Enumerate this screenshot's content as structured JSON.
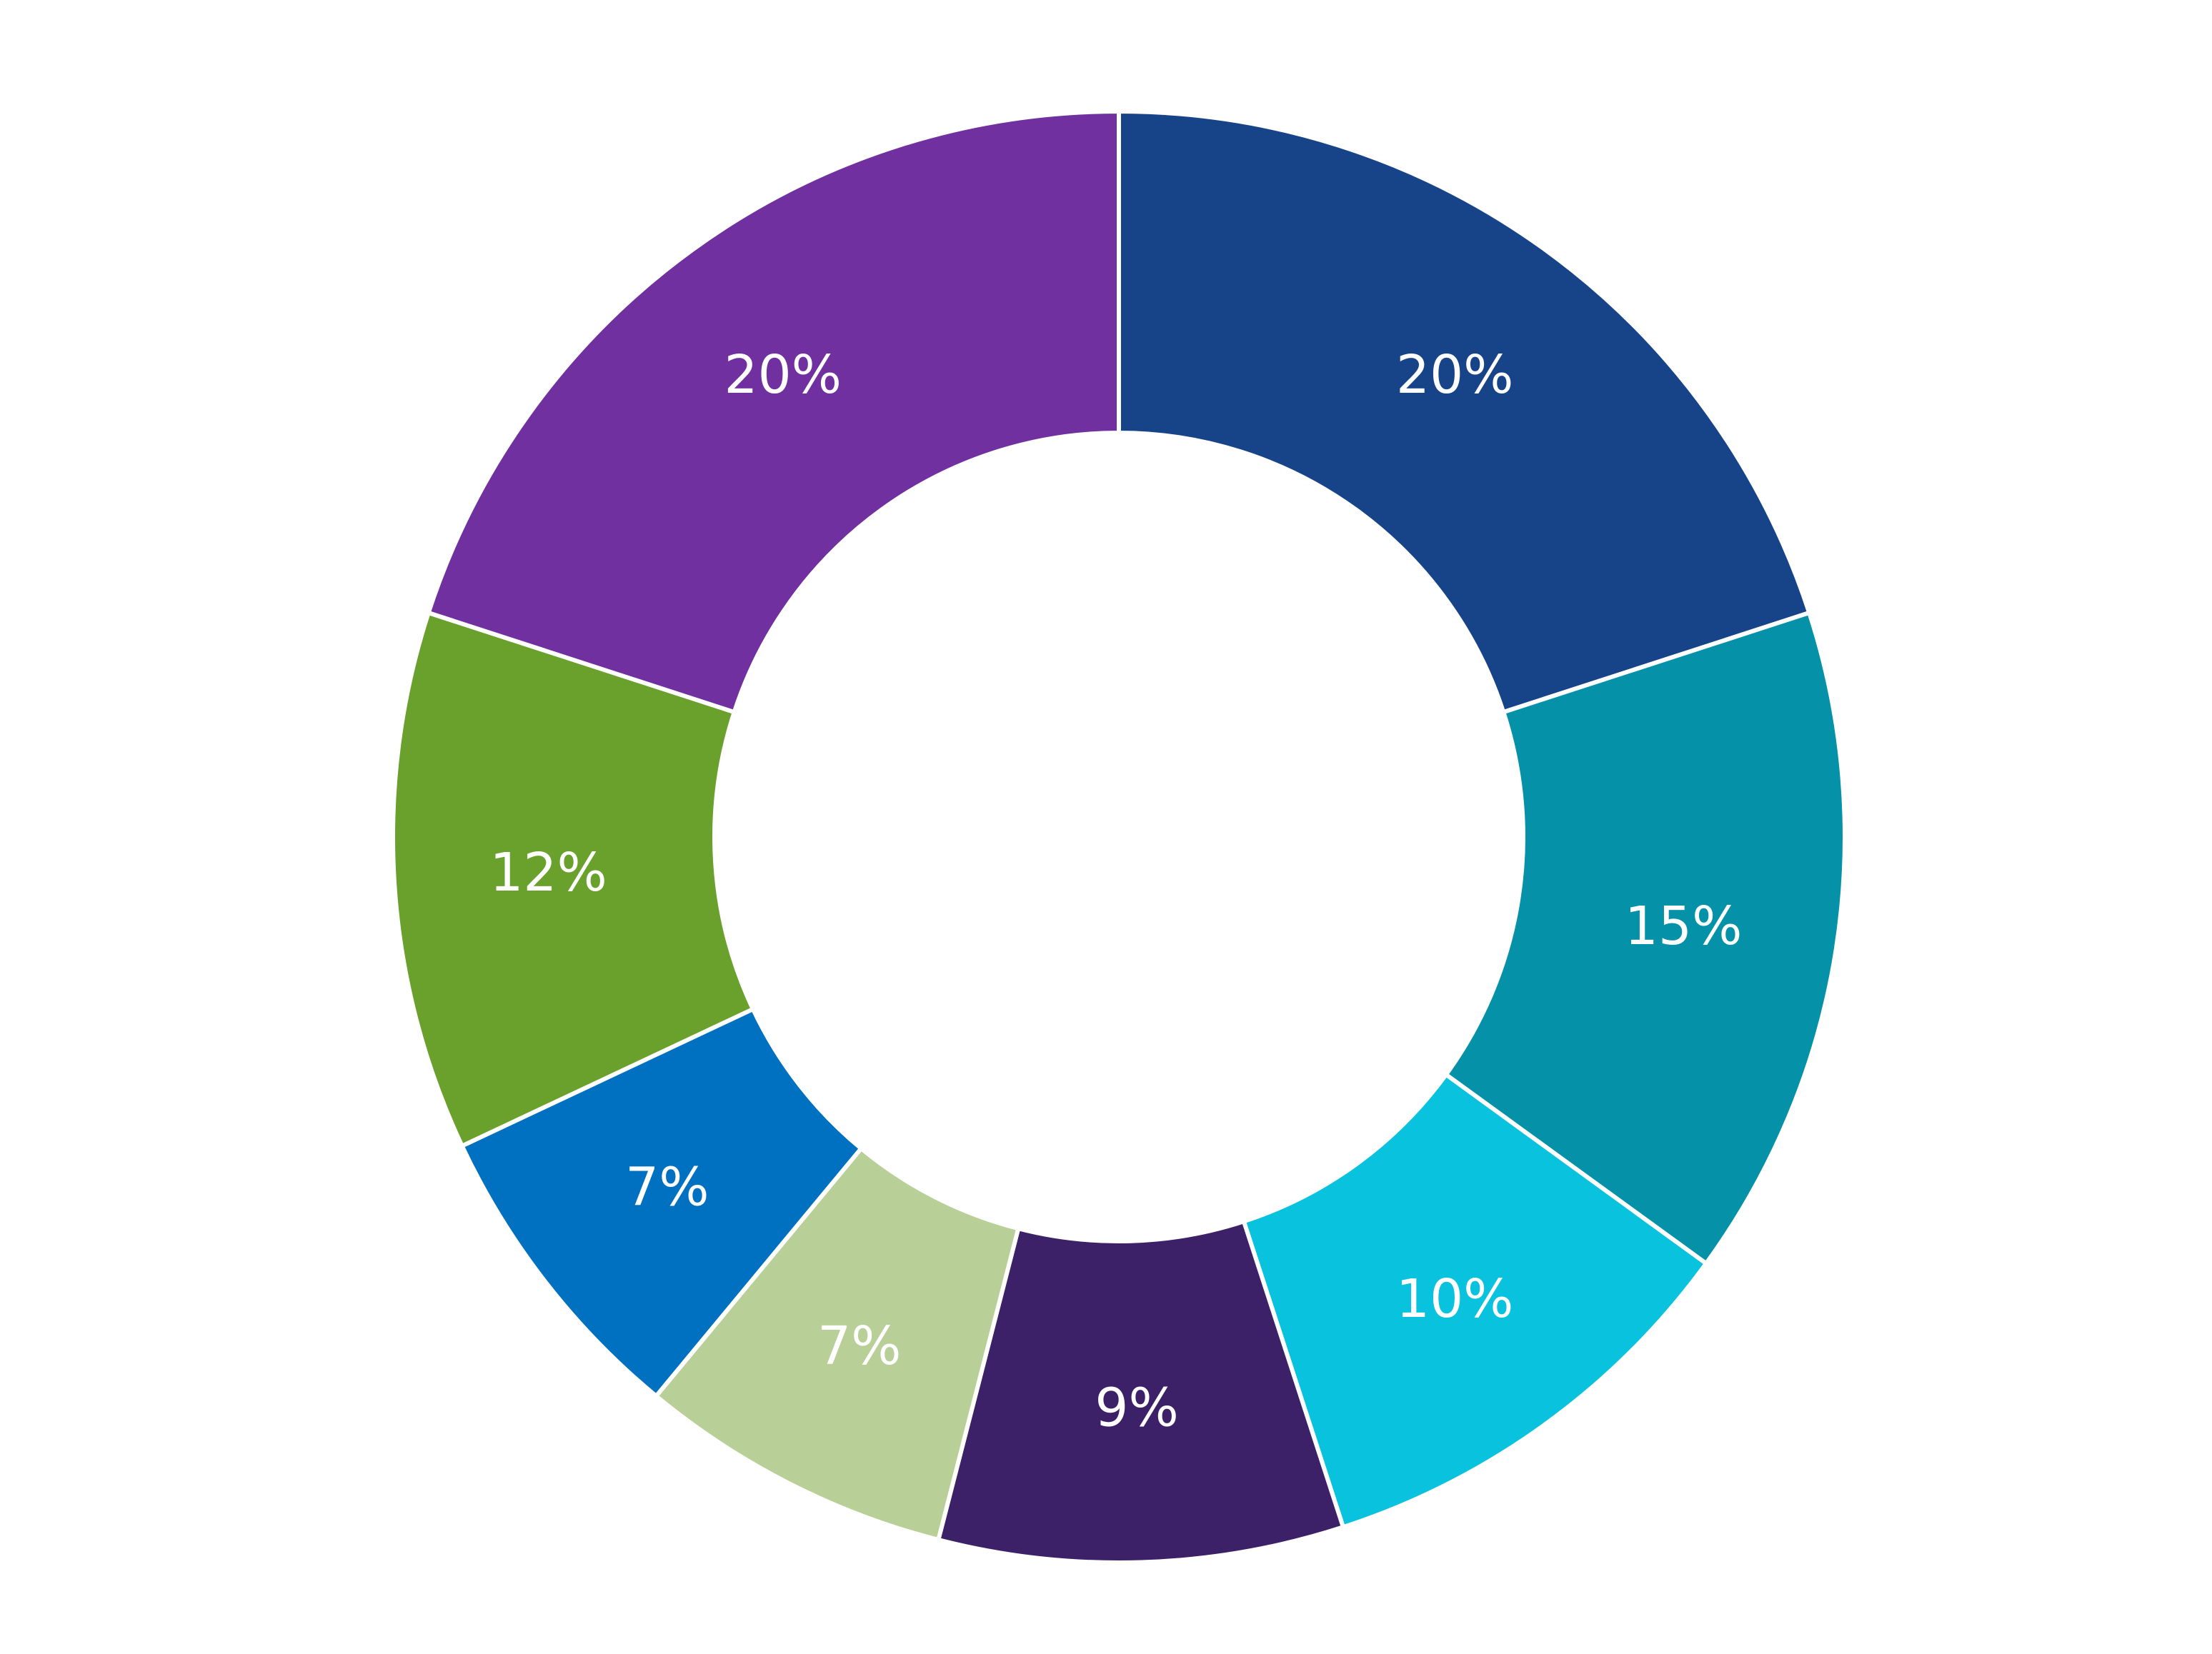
{
  "chart_data": {
    "type": "pie",
    "donut": true,
    "start_angle_deg": 0,
    "direction": "clockwise",
    "slices": [
      {
        "value": 20,
        "label": "20%",
        "color": "#174489"
      },
      {
        "value": 15,
        "label": "15%",
        "color": "#0592a8"
      },
      {
        "value": 10,
        "label": "10%",
        "color": "#08c2de"
      },
      {
        "value": 9,
        "label": "9%",
        "color": "#3c2168"
      },
      {
        "value": 7,
        "label": "7%",
        "color": "#b9cf98"
      },
      {
        "value": 7,
        "label": "7%",
        "color": "#0070c0"
      },
      {
        "value": 12,
        "label": "12%",
        "color": "#6aa02c"
      },
      {
        "value": 20,
        "label": "20%",
        "color": "#7030a0"
      }
    ]
  }
}
